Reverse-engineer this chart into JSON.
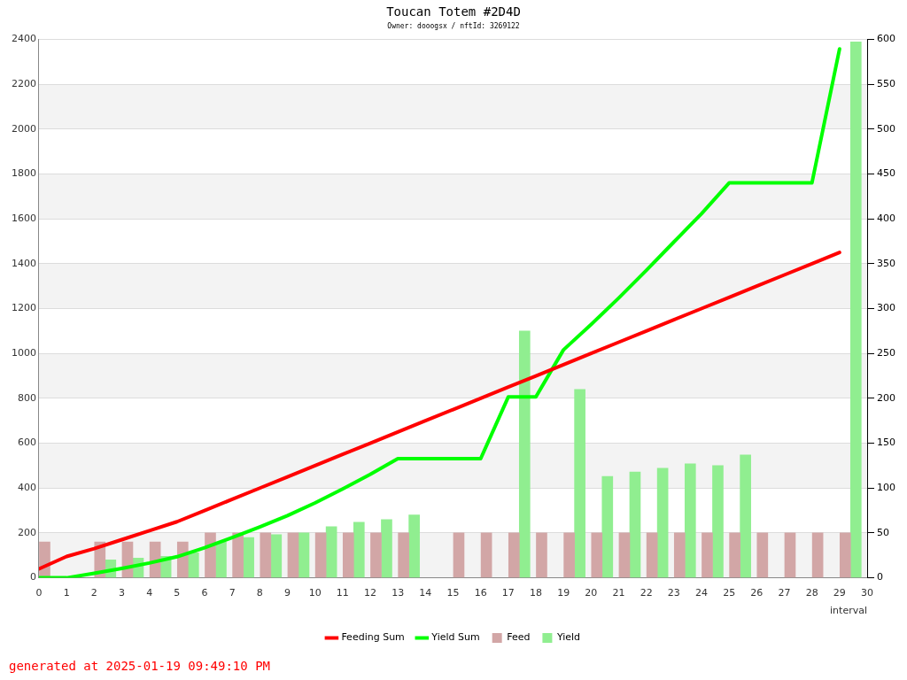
{
  "chart_data": {
    "type": "bar",
    "title": "Toucan Totem #2D4D",
    "subtitle": "Owner: dooogsx / nftId: 3269122",
    "xlabel": "interval",
    "annotations": [
      "generated at 2025-01-19 09:49:10 PM"
    ],
    "xlim": [
      0,
      30
    ],
    "xticks": [
      0,
      1,
      2,
      3,
      4,
      5,
      6,
      7,
      8,
      9,
      10,
      11,
      12,
      13,
      14,
      15,
      16,
      17,
      18,
      19,
      20,
      21,
      22,
      23,
      24,
      25,
      26,
      27,
      28,
      29,
      30
    ],
    "ylim": [
      0,
      2400
    ],
    "yticks": [
      0,
      200,
      400,
      600,
      800,
      1000,
      1200,
      1400,
      1600,
      1800,
      2000,
      2200,
      2400
    ],
    "y2lim": [
      0,
      600
    ],
    "y2ticks": [
      0,
      50,
      100,
      150,
      200,
      250,
      300,
      350,
      400,
      450,
      500,
      550,
      600
    ],
    "grid": "y",
    "legend": "bottom",
    "marker": "none",
    "line_style": "solid",
    "series": [
      {
        "name": "Feeding Sum",
        "type": "line",
        "color": "#ff0000",
        "x": [
          0,
          1,
          2,
          3,
          4,
          5,
          6,
          7,
          8,
          9,
          10,
          11,
          12,
          13,
          14,
          15,
          16,
          17,
          18,
          19,
          20,
          21,
          22,
          23,
          24,
          25,
          26,
          27,
          28,
          29
        ],
        "values": [
          40,
          95,
          130,
          170,
          210,
          250,
          300,
          350,
          400,
          450,
          500,
          550,
          600,
          650,
          700,
          750,
          800,
          850,
          900,
          950,
          1000,
          1050,
          1100,
          1150,
          1200,
          1250,
          1300,
          1350,
          1400,
          1450
        ]
      },
      {
        "name": "Yield Sum",
        "type": "line",
        "color": "#00ff00",
        "x": [
          0,
          1,
          2,
          3,
          4,
          5,
          6,
          7,
          8,
          9,
          10,
          11,
          12,
          13,
          14,
          15,
          16,
          17,
          18,
          19,
          20,
          21,
          22,
          23,
          24,
          25,
          26,
          27,
          28,
          29
        ],
        "values": [
          0,
          0,
          20,
          42,
          66,
          94,
          134,
          179,
          227,
          277,
          334,
          396,
          461,
          531,
          531,
          531,
          531,
          806,
          806,
          1016,
          1129,
          1247,
          1370,
          1497,
          1623,
          1760,
          1760,
          1760,
          1760,
          2357
        ]
      },
      {
        "name": "Feed",
        "axis": "y2",
        "color": "#d2a6a6",
        "x": [
          0.4,
          2.4,
          3.4,
          4.4,
          5.4,
          6.4,
          7.4,
          8.4,
          9.4,
          10.4,
          11.4,
          12.4,
          13.4,
          15.4,
          16.4,
          17.4,
          18.4,
          19.4,
          20.4,
          21.4,
          22.4,
          23.4,
          24.4,
          25.4,
          26.4,
          27.4,
          28.4,
          29.4
        ],
        "values": [
          40,
          40,
          40,
          40,
          40,
          50,
          50,
          50,
          50,
          50,
          50,
          50,
          50,
          50,
          50,
          50,
          50,
          50,
          50,
          50,
          50,
          50,
          50,
          50,
          50,
          50,
          50,
          50
        ]
      },
      {
        "name": "Yield",
        "axis": "y2",
        "color": "#90ee90",
        "x": [
          2.4,
          3.4,
          4.4,
          5.4,
          6.4,
          7.4,
          8.4,
          9.4,
          10.4,
          11.4,
          12.4,
          13.4,
          17.4,
          19.4,
          20.4,
          21.4,
          22.4,
          23.4,
          24.4,
          25.4,
          29.4
        ],
        "values": [
          20,
          22,
          24,
          28,
          40,
          45,
          48,
          50,
          57,
          62,
          65,
          70,
          275,
          210,
          113,
          118,
          122,
          127,
          125,
          137,
          597
        ]
      }
    ]
  }
}
